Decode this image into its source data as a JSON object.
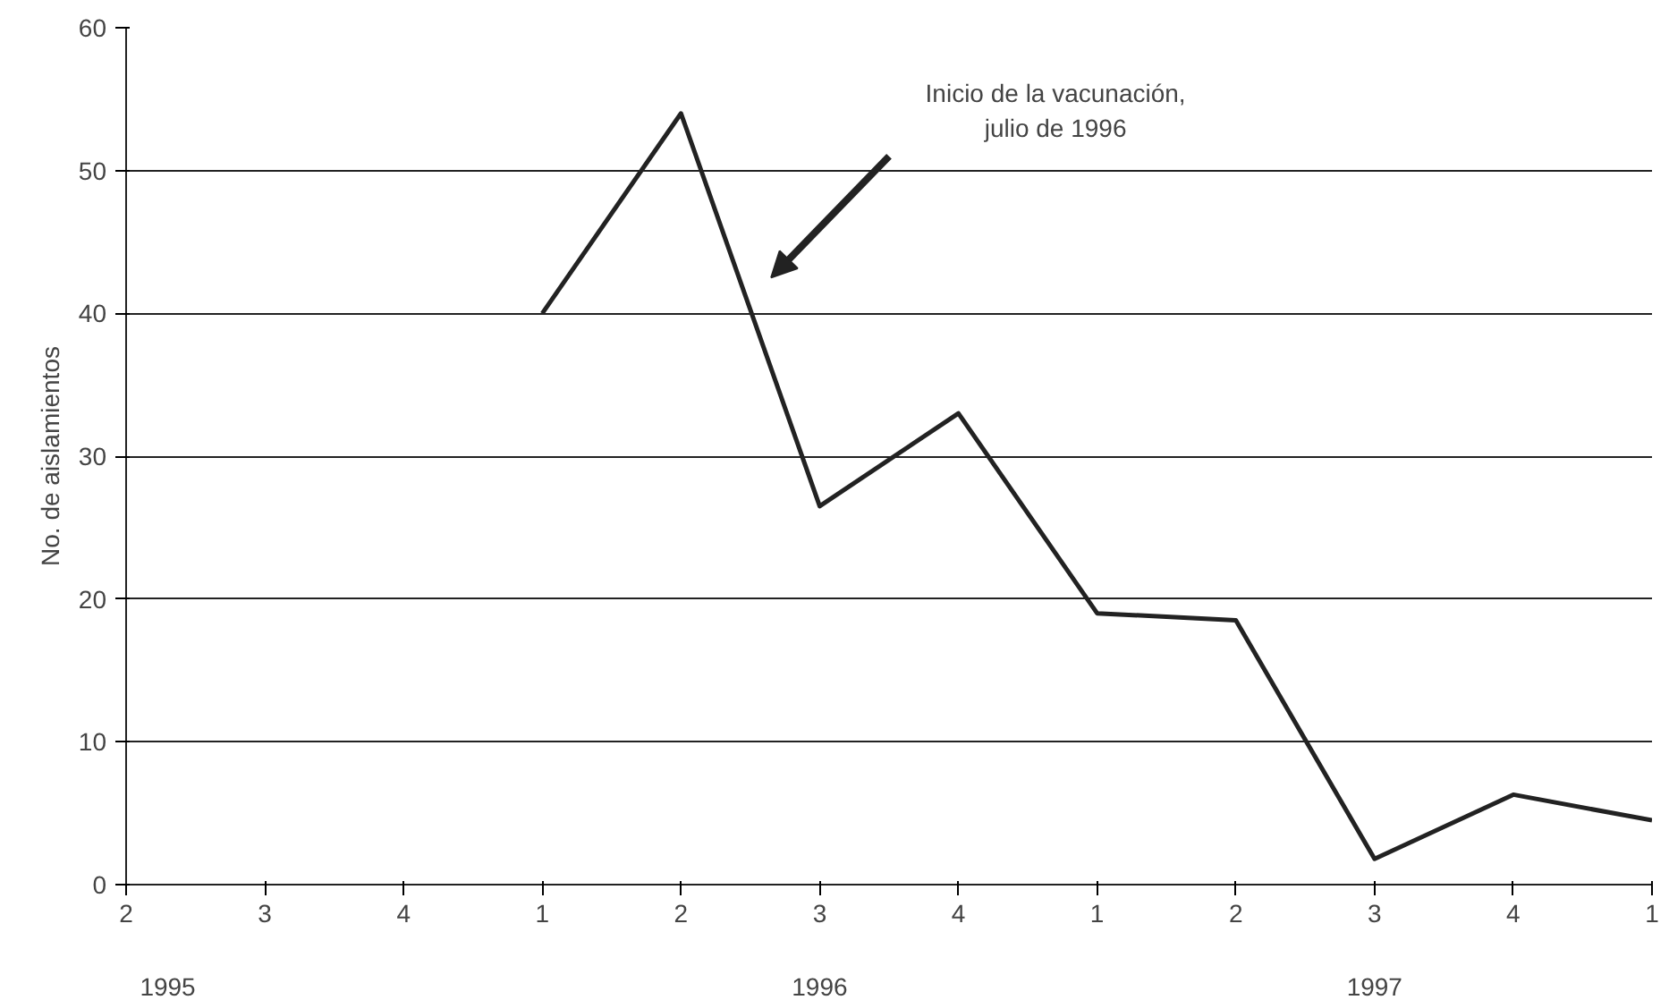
{
  "chart_data": {
    "type": "line",
    "ylabel": "No. de aislamientos",
    "categories": [
      "2",
      "3",
      "4",
      "1",
      "2",
      "3",
      "4",
      "1",
      "2",
      "3",
      "4",
      "1"
    ],
    "series": [
      {
        "color": "#222222",
        "values": [
          null,
          null,
          null,
          40,
          54,
          26.5,
          33,
          19,
          18.5,
          1.8,
          6.3,
          4.5
        ]
      }
    ],
    "ylim": [
      0,
      60
    ],
    "yticks": [
      0,
      10,
      20,
      30,
      40,
      50,
      60
    ],
    "grid": "y",
    "marker": "none",
    "line_style": "solid",
    "annotations": [
      "Inicio de la vacunación,\njulio de 1996",
      "1995",
      "1996",
      "1997"
    ]
  }
}
